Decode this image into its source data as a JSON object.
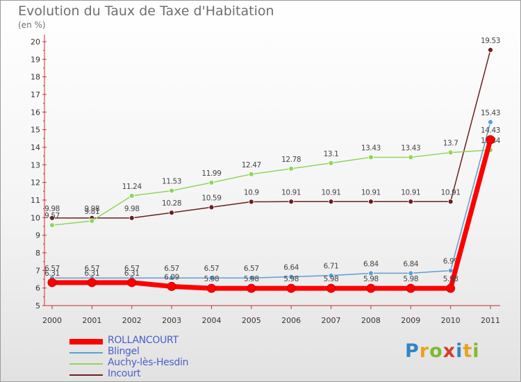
{
  "title": "Evolution du Taux de Taxe d'Habitation",
  "unit_label": "(en %)",
  "logo": {
    "letters": [
      "P",
      "r",
      "o",
      "x",
      "i",
      "t",
      "i"
    ],
    "colors": [
      "#2e86c8",
      "#e8a21c",
      "#7dbb2e",
      "#d93a2b",
      "#2e86c8",
      "#e8a21c",
      "#7dbb2e"
    ]
  },
  "chart_data": {
    "type": "line",
    "title": "Evolution du Taux de Taxe d'Habitation",
    "ylabel": "(en %)",
    "xlabel": "",
    "ylim": [
      5,
      20
    ],
    "yticks": [
      "5",
      "6",
      "7",
      "8",
      "9",
      "10",
      "11",
      "12",
      "13",
      "14",
      "15",
      "16",
      "17",
      "18",
      "19",
      "20"
    ],
    "categories": [
      "2000",
      "2001",
      "2002",
      "2003",
      "2004",
      "2005",
      "2006",
      "2007",
      "2008",
      "2009",
      "2010",
      "2011"
    ],
    "series": [
      {
        "name": "Incourt",
        "color": "#6b1f1f",
        "values": [
          9.98,
          9.98,
          9.98,
          10.28,
          10.59,
          10.9,
          10.91,
          10.91,
          10.91,
          10.91,
          10.91,
          19.53
        ],
        "labels": [
          "9.98",
          "9.98",
          "9.98",
          "10.28",
          "10.59",
          "10.9",
          "10.91",
          "10.91",
          "10.91",
          "10.91",
          "10.91",
          "19.53"
        ]
      },
      {
        "name": "Auchy-lès-Hesdin",
        "color": "#8fd65a",
        "values": [
          9.57,
          9.81,
          11.24,
          11.53,
          11.99,
          12.47,
          12.78,
          13.1,
          13.43,
          13.43,
          13.7,
          13.84
        ],
        "labels": [
          "9.57",
          "9.81",
          "11.24",
          "11.53",
          "11.99",
          "12.47",
          "12.78",
          "13.1",
          "13.43",
          "13.43",
          "13.7",
          "13.84"
        ]
      },
      {
        "name": "Blingel",
        "color": "#5b9fd4",
        "values": [
          6.57,
          6.57,
          6.57,
          6.57,
          6.57,
          6.57,
          6.64,
          6.71,
          6.84,
          6.84,
          6.99,
          15.43
        ],
        "labels": [
          "6.57",
          "6.57",
          "6.57",
          "6.57",
          "6.57",
          "6.57",
          "6.64",
          "6.71",
          "6.84",
          "6.84",
          "6.99",
          "15.43"
        ]
      },
      {
        "name": "ROLLANCOURT",
        "color": "#ff0000",
        "values": [
          6.31,
          6.31,
          6.31,
          6.09,
          5.98,
          5.98,
          5.98,
          5.98,
          5.98,
          5.98,
          5.98,
          14.43
        ],
        "labels": [
          "6.31",
          "6.31",
          "6.31",
          "6.09",
          "5.98",
          "5.98",
          "5.98",
          "5.98",
          "5.98",
          "5.98",
          "5.98",
          "14.43"
        ]
      }
    ],
    "legend": [
      "ROLLANCOURT",
      "Blingel",
      "Auchy-lès-Hesdin",
      "Incourt"
    ],
    "legend_position": "bottom-left",
    "grid": false
  }
}
